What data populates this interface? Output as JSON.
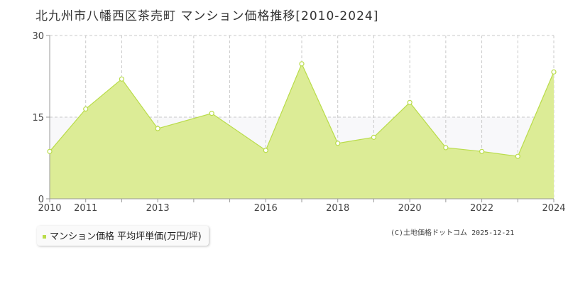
{
  "header": {
    "title": "北九州市八幡西区茶売町 マンション価格推移[2010-2024]"
  },
  "legend": {
    "label": "マンション価格 平均坪単価(万円/坪)"
  },
  "credit": "(C)土地価格ドットコム 2025-12-21",
  "colors": {
    "area_fill": "#dcec96",
    "line": "#b9dc4a",
    "grid": "#c9c9c9",
    "axis": "#999999",
    "plot_bg": "#ffffff",
    "band_bg": "#f8f8fa"
  },
  "chart_data": {
    "type": "area",
    "x": [
      2010,
      2011,
      2012,
      2013,
      2014,
      2015,
      2016,
      2017,
      2018,
      2019,
      2020,
      2021,
      2022,
      2023,
      2024
    ],
    "series": [
      {
        "name": "マンション価格 平均坪単価(万円/坪)",
        "values": [
          8.7,
          16.5,
          22.0,
          12.9,
          15.7,
          8.9,
          24.8,
          10.2,
          11.3,
          17.7,
          9.4,
          8.7,
          7.8,
          23.3
        ]
      }
    ],
    "x_values": [
      2010,
      2011,
      2012,
      2013,
      2014.5,
      2016,
      2017,
      2018,
      2019,
      2020,
      2021,
      2022,
      2023,
      2024
    ],
    "xlim": [
      2010,
      2024
    ],
    "ylim": [
      0,
      30
    ],
    "yticks": [
      0,
      15,
      30
    ],
    "xticks": [
      2010,
      2011,
      2013,
      2016,
      2018,
      2020,
      2022,
      2024
    ],
    "grid": true
  }
}
